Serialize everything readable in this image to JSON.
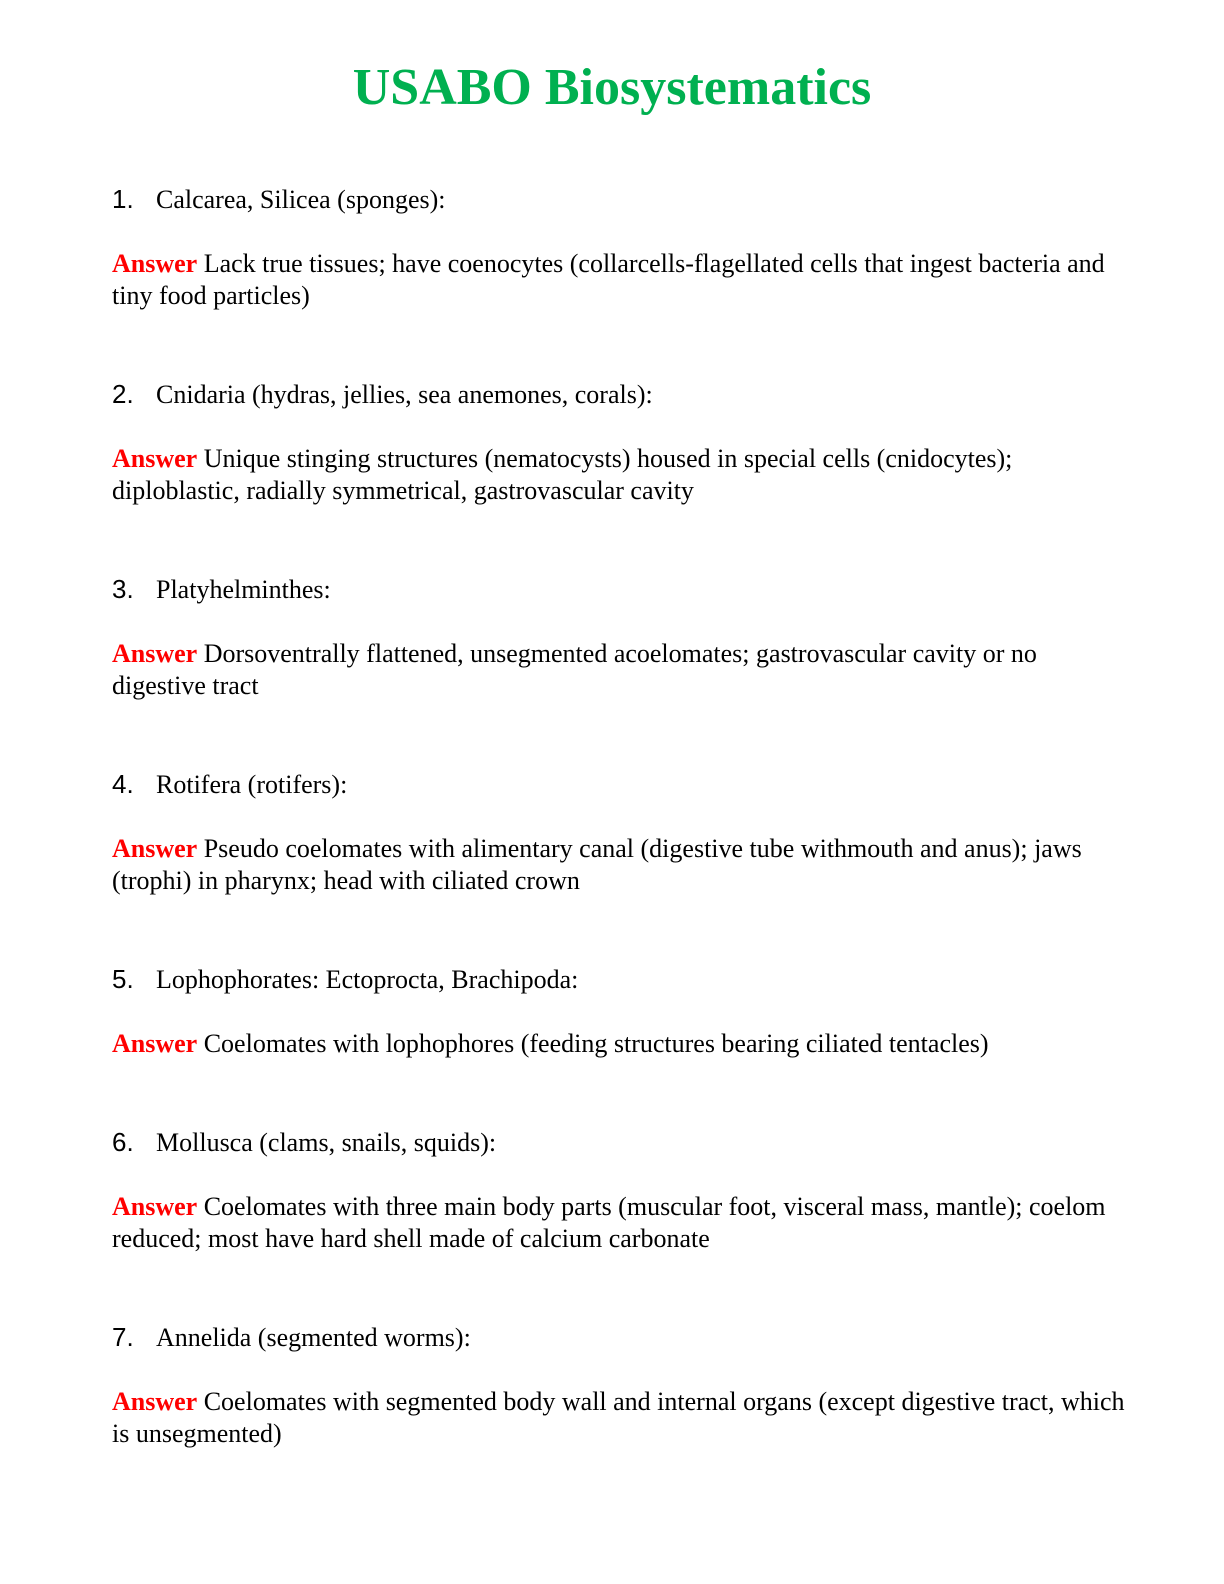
{
  "title": "USABO Biosystematics",
  "colors": {
    "title": "#00b050",
    "answer_label": "#ff0000"
  },
  "items": [
    {
      "number": "1.",
      "question": "Calcarea, Silicea (sponges):",
      "answer_label": "Answer",
      "answer": "Lack true tissues; have coenocytes (collarcells-flagellated cells that ingest bacteria and tiny food particles)"
    },
    {
      "number": "2.",
      "question": "Cnidaria (hydras, jellies, sea anemones, corals):",
      "answer_label": "Answer",
      "answer": " Unique stinging structures (nematocysts) housed in special cells (cnidocytes); diploblastic, radially symmetrical, gastrovascular cavity"
    },
    {
      "number": "3.",
      "question": "Platyhelminthes:",
      "answer_label": "Answer",
      "answer": "Dorsoventrally flattened, unsegmented acoelomates; gastrovascular cavity or no digestive tract"
    },
    {
      "number": "4.",
      "question": "Rotifera (rotifers):",
      "answer_label": "Answer",
      "answer": "Pseudo coelomates with alimentary canal (digestive tube withmouth and anus); jaws (trophi) in pharynx; head with ciliated crown"
    },
    {
      "number": "5.",
      "question": "Lophophorates: Ectoprocta, Brachipoda:",
      "answer_label": "Answer",
      "answer": "Coelomates with lophophores (feeding structures bearing ciliated tentacles)"
    },
    {
      "number": "6.",
      "question": "Mollusca (clams, snails, squids):",
      "answer_label": "Answer",
      "answer": "Coelomates with three main body parts (muscular foot, visceral mass, mantle); coelom reduced; most have hard shell made of calcium carbonate"
    },
    {
      "number": "7.",
      "question": "Annelida (segmented worms):",
      "answer_label": "Answer",
      "answer": " Coelomates with segmented body wall and internal organs (except digestive tract, which is unsegmented)"
    }
  ]
}
